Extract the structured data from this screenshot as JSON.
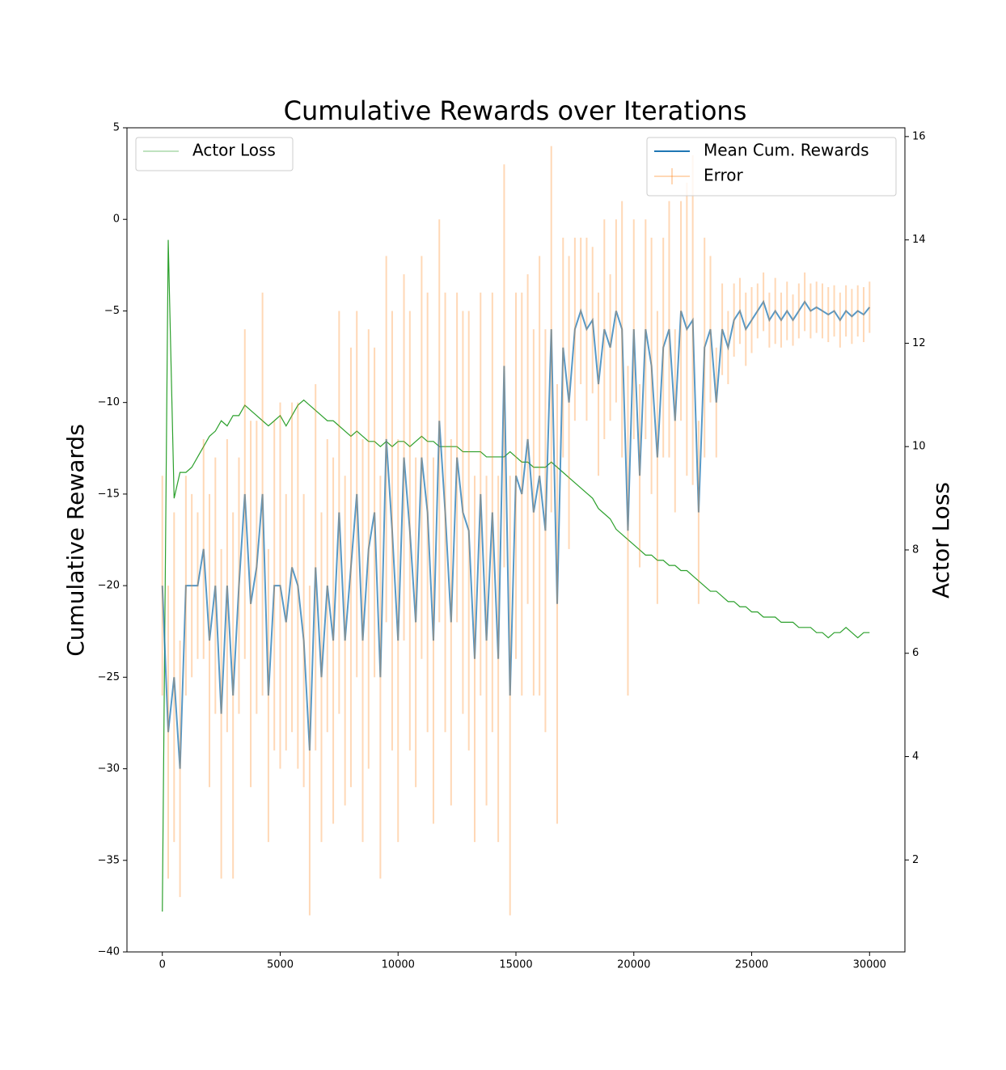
{
  "chart_data": {
    "type": "line",
    "title": "Cumulative Rewards over Iterations",
    "y_label": "Cumulative Rewards",
    "y2_label": "Actor Loss",
    "x": [
      0,
      250,
      500,
      750,
      1000,
      1250,
      1500,
      1750,
      2000,
      2250,
      2500,
      2750,
      3000,
      3250,
      3500,
      3750,
      4000,
      4250,
      4500,
      4750,
      5000,
      5250,
      5500,
      5750,
      6000,
      6250,
      6500,
      6750,
      7000,
      7250,
      7500,
      7750,
      8000,
      8250,
      8500,
      8750,
      9000,
      9250,
      9500,
      9750,
      10000,
      10250,
      10500,
      10750,
      11000,
      11250,
      11500,
      11750,
      12000,
      12250,
      12500,
      12750,
      13000,
      13250,
      13500,
      13750,
      14000,
      14250,
      14500,
      14750,
      15000,
      15250,
      15500,
      15750,
      16000,
      16250,
      16500,
      16750,
      17000,
      17250,
      17500,
      17750,
      18000,
      18250,
      18500,
      18750,
      19000,
      19250,
      19500,
      19750,
      20000,
      20250,
      20500,
      20750,
      21000,
      21250,
      21500,
      21750,
      22000,
      22250,
      22500,
      22750,
      23000,
      23250,
      23500,
      23750,
      24000,
      24250,
      24500,
      24750,
      25000,
      25250,
      25500,
      25750,
      26000,
      26250,
      26500,
      26750,
      27000,
      27250,
      27500,
      27750,
      28000,
      28250,
      28500,
      28750,
      29000,
      29250,
      29500,
      29750,
      30000
    ],
    "series": [
      {
        "name": "Mean Cum. Rewards",
        "color": "#1f77b4",
        "values": [
          -20,
          -28,
          -25,
          -30,
          -20,
          -20,
          -20,
          -18,
          -23,
          -20,
          -27,
          -20,
          -26,
          -20,
          -15,
          -21,
          -19,
          -15,
          -26,
          -20,
          -20,
          -22,
          -19,
          -20,
          -23,
          -29,
          -19,
          -25,
          -20,
          -23,
          -16,
          -23,
          -19,
          -15,
          -23,
          -18,
          -16,
          -25,
          -12,
          -17,
          -23,
          -13,
          -17,
          -22,
          -13,
          -16,
          -23,
          -11,
          -16,
          -22,
          -13,
          -16,
          -17,
          -24,
          -15,
          -23,
          -16,
          -24,
          -8,
          -26,
          -14,
          -15,
          -12,
          -16,
          -14,
          -17,
          -6,
          -21,
          -7,
          -10,
          -6,
          -5,
          -6,
          -5.5,
          -9,
          -6,
          -7,
          -5,
          -6,
          -17,
          -6,
          -14,
          -6,
          -8,
          -13,
          -7,
          -6,
          -11,
          -5,
          -6,
          -5.5,
          -16,
          -7,
          -6,
          -10,
          -6,
          -7,
          -5.5,
          -5,
          -6,
          -5.5,
          -5,
          -4.5,
          -5.5,
          -5,
          -5.5,
          -5,
          -5.5,
          -5,
          -4.5,
          -5,
          -4.8,
          -5,
          -5.2,
          -5,
          -5.5,
          -5,
          -5.3,
          -5,
          -5.2,
          -4.8
        ]
      },
      {
        "name": "Error",
        "color": "#ff7f0e",
        "values": [
          6,
          8,
          9,
          7,
          6,
          5,
          4,
          6,
          8,
          7,
          9,
          8,
          10,
          7,
          9,
          10,
          8,
          11,
          8,
          9,
          10,
          7,
          9,
          10,
          8,
          9,
          10,
          9,
          8,
          10,
          11,
          9,
          12,
          10,
          11,
          12,
          9,
          11,
          10,
          12,
          11,
          10,
          12,
          9,
          11,
          12,
          10,
          11,
          12,
          10,
          9,
          11,
          12,
          10,
          11,
          9,
          12,
          10,
          11,
          12,
          10,
          11,
          9,
          10,
          12,
          11,
          10,
          12,
          6,
          8,
          5,
          4,
          5,
          4,
          5,
          6,
          4,
          5,
          7,
          9,
          6,
          5,
          6,
          7,
          8,
          6,
          7,
          5,
          6,
          8,
          9,
          5,
          6,
          4,
          3,
          2.5,
          2,
          2,
          1.8,
          2,
          1.8,
          1.5,
          1.6,
          1.5,
          1.8,
          1.5,
          1.6,
          1.4,
          1.5,
          1.6,
          1.5,
          1.4,
          1.5,
          1.5,
          1.4,
          1.5,
          1.4,
          1.5,
          1.4,
          1.5,
          1.4
        ]
      },
      {
        "name": "Actor Loss",
        "color": "#2ca02c",
        "axis": "y2",
        "values": [
          1,
          14,
          9,
          9.5,
          9.5,
          9.6,
          9.8,
          10,
          10.2,
          10.3,
          10.5,
          10.4,
          10.6,
          10.6,
          10.8,
          10.7,
          10.6,
          10.5,
          10.4,
          10.5,
          10.6,
          10.4,
          10.6,
          10.8,
          10.9,
          10.8,
          10.7,
          10.6,
          10.5,
          10.5,
          10.4,
          10.3,
          10.2,
          10.3,
          10.2,
          10.1,
          10.1,
          10.0,
          10.1,
          10.0,
          10.1,
          10.1,
          10.0,
          10.1,
          10.2,
          10.1,
          10.1,
          10.0,
          10.0,
          10.0,
          10.0,
          9.9,
          9.9,
          9.9,
          9.9,
          9.8,
          9.8,
          9.8,
          9.8,
          9.9,
          9.8,
          9.7,
          9.7,
          9.6,
          9.6,
          9.6,
          9.7,
          9.6,
          9.5,
          9.4,
          9.3,
          9.2,
          9.1,
          9.0,
          8.8,
          8.7,
          8.6,
          8.4,
          8.3,
          8.2,
          8.1,
          8.0,
          7.9,
          7.9,
          7.8,
          7.8,
          7.7,
          7.7,
          7.6,
          7.6,
          7.5,
          7.4,
          7.3,
          7.2,
          7.2,
          7.1,
          7.0,
          7.0,
          6.9,
          6.9,
          6.8,
          6.8,
          6.7,
          6.7,
          6.7,
          6.6,
          6.6,
          6.6,
          6.5,
          6.5,
          6.5,
          6.4,
          6.4,
          6.3,
          6.4,
          6.4,
          6.5,
          6.4,
          6.3,
          6.4,
          6.4
        ]
      }
    ],
    "xlim": [
      -1500,
      31500
    ],
    "xticks": [
      0,
      5000,
      10000,
      15000,
      20000,
      25000,
      30000
    ],
    "ylim": [
      -40,
      5
    ],
    "yticks": [
      {
        "value": -40,
        "label": "−40"
      },
      {
        "value": -35,
        "label": "−35"
      },
      {
        "value": -30,
        "label": "−30"
      },
      {
        "value": -25,
        "label": "−25"
      },
      {
        "value": -20,
        "label": "−20"
      },
      {
        "value": -15,
        "label": "−15"
      },
      {
        "value": -10,
        "label": "−10"
      },
      {
        "value": -5,
        "label": "−5"
      },
      0,
      5
    ],
    "y2lim": [
      0.22,
      16.17
    ],
    "y2ticks": [
      2,
      4,
      6,
      8,
      10,
      12,
      14,
      16
    ],
    "legend": {
      "y": "upper right",
      "y2": "upper left"
    }
  }
}
